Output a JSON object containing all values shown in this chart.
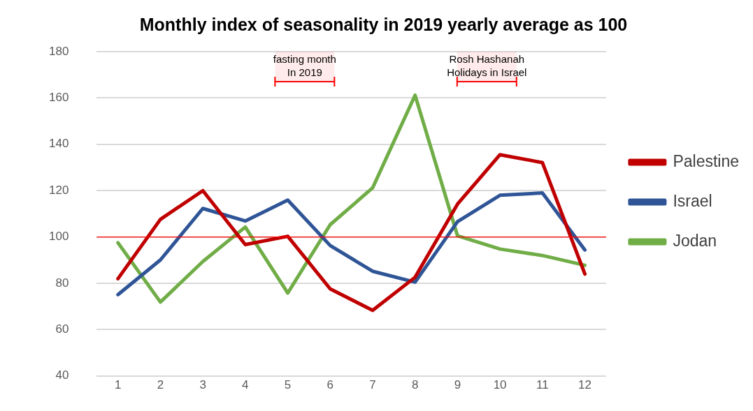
{
  "chart_data": {
    "type": "line",
    "title": "Monthly index of seasonality in 2019 yearly average as 100",
    "x": [
      1,
      2,
      3,
      4,
      5,
      6,
      7,
      8,
      9,
      10,
      11,
      12
    ],
    "series": [
      {
        "name": "Palestine",
        "color": "#c00000",
        "values": [
          82,
          107.6,
          120,
          96.7,
          100.3,
          77.6,
          68.3,
          82.6,
          114.2,
          135.5,
          132.1,
          84
        ]
      },
      {
        "name": "Israel",
        "color": "#2f5597",
        "values": [
          75.1,
          90.1,
          112.3,
          106.9,
          115.9,
          96.3,
          85.2,
          80.5,
          106.6,
          118,
          119,
          94.4
        ]
      },
      {
        "name": "Jodan",
        "color": "#70ad47",
        "values": [
          97.5,
          71.9,
          89.4,
          104.3,
          75.8,
          105.3,
          121.2,
          161.2,
          100.5,
          94.8,
          92,
          87.8
        ]
      }
    ],
    "xlim": [
      0.5,
      12.5
    ],
    "xticks": [
      1,
      2,
      3,
      4,
      5,
      6,
      7,
      8,
      9,
      10,
      11,
      12
    ],
    "ylim": [
      40,
      180
    ],
    "yticks": [
      40,
      60,
      80,
      100,
      120,
      140,
      160,
      180
    ],
    "grid": "y",
    "legend": "right",
    "marker": "none",
    "line_style": "solid",
    "ref_lines": [
      {
        "axis": "y",
        "value": 100,
        "color": "#ff0000"
      }
    ],
    "bands": [
      {
        "axis": "x",
        "from": 4.7,
        "to": 6.1,
        "label": "fasting month\nIn 2019",
        "color": "#ff0000"
      },
      {
        "axis": "x",
        "from": 8.99,
        "to": 10.39,
        "label": "Rosh Hashanah\nHolidays in Israel",
        "color": "#ff0000"
      }
    ]
  }
}
